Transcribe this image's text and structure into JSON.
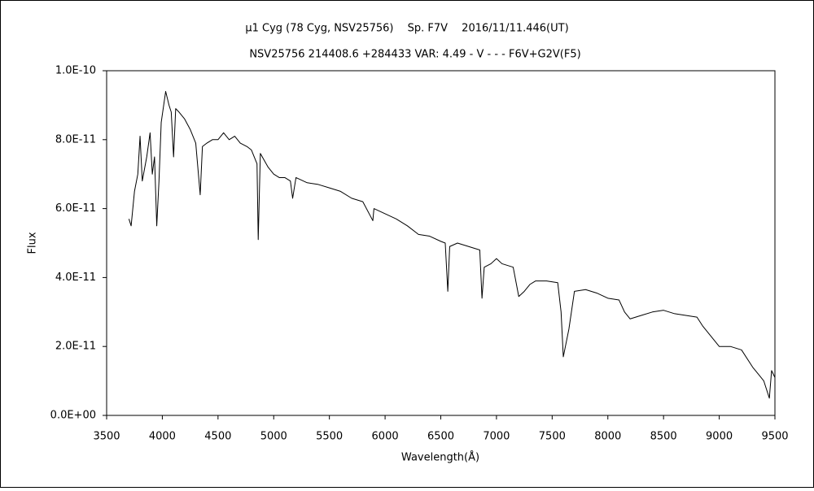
{
  "chart_data": {
    "type": "line",
    "title": "μ1 Cyg (78 Cyg, NSV25756)　 Sp. F7V　 2016/11/11.446(UT)",
    "subtitle": "NSV25756 214408.6 +284433 VAR: 4.49 - V - - - F6V+G2V(F5)",
    "xlabel": "Wavelength(Å)",
    "ylabel": "Flux",
    "x": [
      3700,
      3720,
      3750,
      3780,
      3800,
      3820,
      3860,
      3890,
      3910,
      3930,
      3950,
      3970,
      3990,
      4030,
      4060,
      4080,
      4101,
      4120,
      4150,
      4200,
      4250,
      4300,
      4340,
      4360,
      4400,
      4450,
      4500,
      4550,
      4600,
      4650,
      4700,
      4760,
      4800,
      4850,
      4861,
      4880,
      4950,
      5000,
      5050,
      5100,
      5150,
      5170,
      5200,
      5300,
      5400,
      5500,
      5600,
      5700,
      5800,
      5890,
      5900,
      6000,
      6100,
      6200,
      6300,
      6400,
      6500,
      6540,
      6563,
      6580,
      6650,
      6750,
      6850,
      6870,
      6890,
      6950,
      7000,
      7050,
      7150,
      7200,
      7250,
      7300,
      7350,
      7450,
      7550,
      7580,
      7600,
      7650,
      7700,
      7800,
      7900,
      8000,
      8100,
      8150,
      8200,
      8300,
      8400,
      8500,
      8600,
      8700,
      8800,
      8850,
      9000,
      9100,
      9200,
      9300,
      9350,
      9400,
      9450,
      9470,
      9500
    ],
    "values": [
      5.7e-11,
      5.5e-11,
      6.5e-11,
      7e-11,
      8.1e-11,
      6.8e-11,
      7.5e-11,
      8.2e-11,
      7e-11,
      7.5e-11,
      5.5e-11,
      6.8e-11,
      8.5e-11,
      9.4e-11,
      9e-11,
      8.8e-11,
      7.5e-11,
      8.9e-11,
      8.8e-11,
      8.6e-11,
      8.3e-11,
      7.9e-11,
      6.4e-11,
      7.8e-11,
      7.9e-11,
      8e-11,
      8e-11,
      8.2e-11,
      8e-11,
      8.1e-11,
      7.9e-11,
      7.8e-11,
      7.7e-11,
      7.3e-11,
      5.1e-11,
      7.6e-11,
      7.2e-11,
      7e-11,
      6.9e-11,
      6.9e-11,
      6.8e-11,
      6.3e-11,
      6.9e-11,
      6.75e-11,
      6.7e-11,
      6.6e-11,
      6.5e-11,
      6.3e-11,
      6.2e-11,
      5.65e-11,
      6e-11,
      5.85e-11,
      5.7e-11,
      5.5e-11,
      5.25e-11,
      5.2e-11,
      5.05e-11,
      5e-11,
      3.6e-11,
      4.9e-11,
      5e-11,
      4.9e-11,
      4.8e-11,
      3.4e-11,
      4.3e-11,
      4.4e-11,
      4.55e-11,
      4.4e-11,
      4.3e-11,
      3.45e-11,
      3.6e-11,
      3.8e-11,
      3.9e-11,
      3.9e-11,
      3.85e-11,
      3e-11,
      1.7e-11,
      2.5e-11,
      3.6e-11,
      3.65e-11,
      3.55e-11,
      3.4e-11,
      3.35e-11,
      3e-11,
      2.8e-11,
      2.9e-11,
      3e-11,
      3.05e-11,
      2.95e-11,
      2.9e-11,
      2.85e-11,
      2.6e-11,
      2e-11,
      2e-11,
      1.9e-11,
      1.4e-11,
      1.2e-11,
      1e-11,
      5e-12,
      1.3e-11,
      1.1e-11
    ],
    "color": "#000000",
    "xlim": [
      3500,
      9500
    ],
    "xticks": [
      3500,
      4000,
      4500,
      5000,
      5500,
      6000,
      6500,
      7000,
      7500,
      8000,
      8500,
      9000,
      9500
    ],
    "ylim": [
      0,
      1e-10
    ],
    "yticks": [
      {
        "value": 0,
        "label": "0.0E+00"
      },
      {
        "value": 2e-11,
        "label": "2.0E-11"
      },
      {
        "value": 4e-11,
        "label": "4.0E-11"
      },
      {
        "value": 6e-11,
        "label": "6.0E-11"
      },
      {
        "value": 8e-11,
        "label": "8.0E-11"
      },
      {
        "value": 1e-10,
        "label": "1.0E-10"
      }
    ],
    "grid": false
  }
}
